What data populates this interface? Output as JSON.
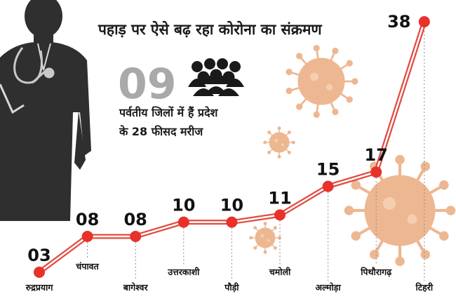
{
  "chart_data": {
    "type": "line",
    "title": "पहाड़ पर ऐसे बढ़ रहा कोरोना का संक्रमण",
    "categories": [
      "रुद्रप्रयाग",
      "चंपावत",
      "बागेश्वर",
      "उत्तरकाशी",
      "पौड़ी",
      "चमोली",
      "अल्मोड़ा",
      "पिथौरागढ़",
      "टिहरी"
    ],
    "value_labels": [
      "03",
      "08",
      "08",
      "10",
      "10",
      "11",
      "15",
      "17",
      "38"
    ],
    "series": [
      {
        "values": [
          3,
          8,
          8,
          10,
          10,
          11,
          15,
          17,
          38
        ]
      }
    ],
    "grid": false,
    "legend": "none"
  },
  "callout": {
    "number": "09",
    "line1": "पर्वतीय जिलों में हैं प्रदेश",
    "line2": "के 28 फीसद मरीज"
  },
  "colors": {
    "line": "#e14b3f",
    "marker": "#e8312b",
    "virus": "#ecb086",
    "silhouette": "#2f2f2f",
    "big_number": "#a9a9a9"
  },
  "icons": [
    "doctor-silhouette-icon",
    "stethoscope-icon",
    "people-group-icon",
    "virus-icon"
  ]
}
